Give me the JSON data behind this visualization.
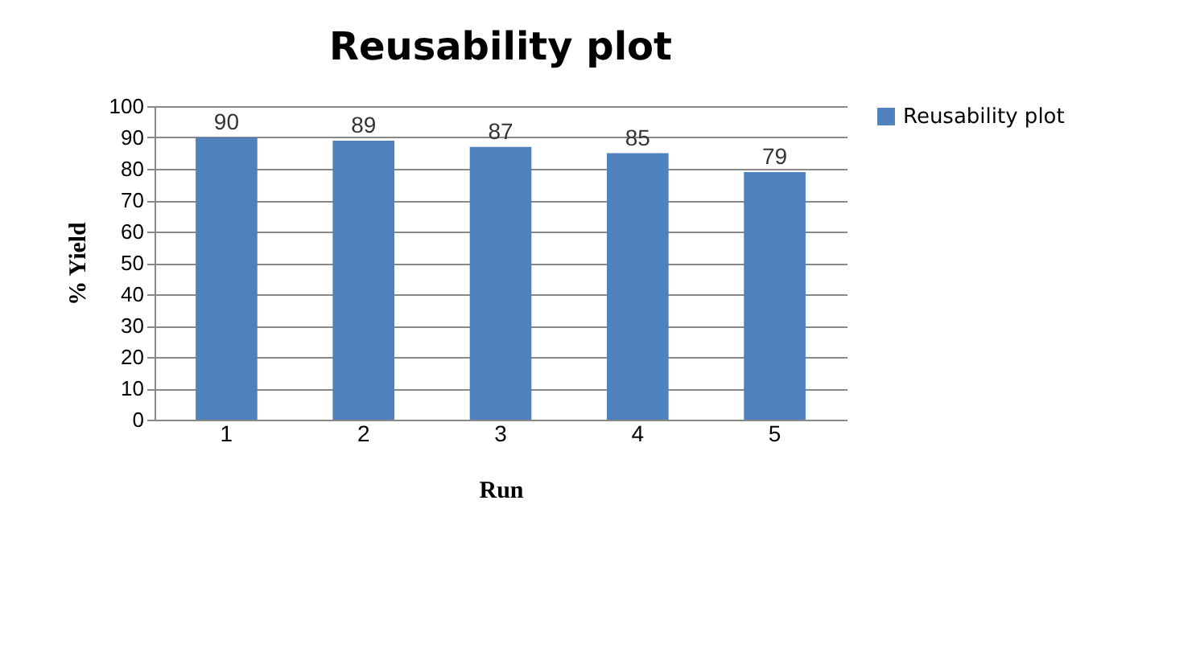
{
  "chart_data": {
    "type": "bar",
    "title": "Reusability plot",
    "xlabel": "Run",
    "ylabel": "% Yield",
    "categories": [
      "1",
      "2",
      "3",
      "4",
      "5"
    ],
    "series": [
      {
        "name": "Reusability plot",
        "color": "#4f81bd",
        "values": [
          90,
          89,
          87,
          85,
          79
        ]
      }
    ],
    "ylim": [
      0,
      100
    ],
    "yticks": [
      0,
      10,
      20,
      30,
      40,
      50,
      60,
      70,
      80,
      90,
      100
    ],
    "grid": "y",
    "legend": "right",
    "data_labels": true
  }
}
